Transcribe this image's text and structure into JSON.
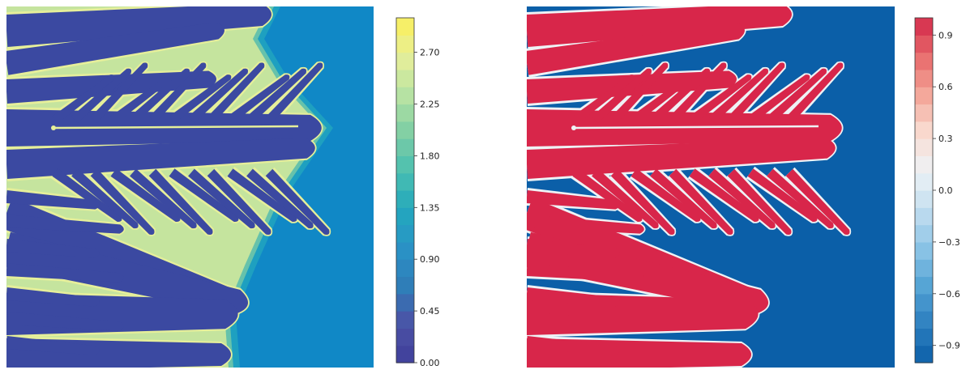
{
  "chart_data": [
    {
      "type": "heatmap",
      "title": "",
      "colormap": "yellow-green-blue",
      "colors": [
        "#3f3f9a",
        "#4c52a6",
        "#2f7db8",
        "#2a93c6",
        "#23a8bd",
        "#4bbfb0",
        "#7fcea4",
        "#b7e2a3",
        "#e6ef9a",
        "#fbef5a"
      ],
      "field_colors": {
        "background": "#1088c6",
        "branch": "#3b49a1",
        "interface": "#e6ef9a"
      },
      "colorbar": {
        "min": 0.0,
        "max": 3.0,
        "levels": 20,
        "ticks": [
          0.0,
          0.45,
          0.9,
          1.35,
          1.8,
          2.25,
          2.7
        ],
        "tick_labels": [
          "0.00",
          "0.45",
          "0.90",
          "1.35",
          "1.80",
          "2.25",
          "2.70"
        ]
      }
    },
    {
      "type": "heatmap",
      "title": "",
      "colormap": "red-blue diverging",
      "colors": [
        "#0b5fa8",
        "#2d7fbf",
        "#55a4d5",
        "#8cc4e6",
        "#c3def0",
        "#eef2f5",
        "#f9dcd1",
        "#f4a79a",
        "#e86b6c",
        "#d3294a"
      ],
      "field_colors": {
        "background": "#0b5fa8",
        "branch": "#d8264a",
        "interface": "#eef2f5"
      },
      "colorbar": {
        "min": -1.0,
        "max": 1.0,
        "levels": 20,
        "ticks": [
          -0.9,
          -0.6,
          -0.3,
          0.0,
          0.3,
          0.6,
          0.9
        ],
        "tick_labels": [
          "−0.9",
          "−0.6",
          "−0.3",
          "0.0",
          "0.3",
          "0.6",
          "0.9"
        ]
      }
    }
  ]
}
